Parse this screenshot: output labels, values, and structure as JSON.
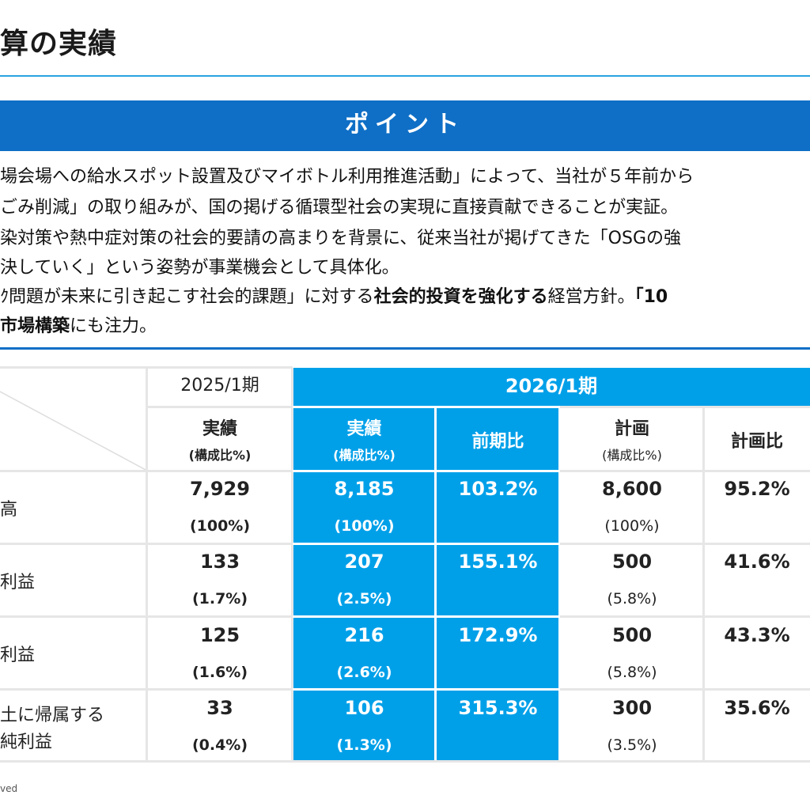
{
  "page": {
    "title": "算の実績",
    "point_label": "ポイント",
    "footer": "ved"
  },
  "points": {
    "line1": "場会場への給水スポット設置及びマイボトル利用推進活動」によって、当社が５年前から",
    "line2": "ごみ削減」の取り組みが、国の掲げる循環型社会の実現に直接貢献できることが実証。",
    "line3": "染対策や熱中症対策の社会的要請の高まりを背景に、従来当社が掲げてきた「OSGの強",
    "line4": "決していく」という姿勢が事業機会として具体化。",
    "line5_a": "ｸ問題が未来に引き起こす社会的課題」に対する",
    "line5_b": "社会的投資を強化する",
    "line5_c": "経営方針。",
    "line5_d": "「10",
    "line6_a": "市場構築",
    "line6_b": "にも注力。"
  },
  "table": {
    "period_prev": "2025/1期",
    "period_curr": "2026/1期",
    "columns": {
      "actual": "実績",
      "actual_ratio": "(構成比%)",
      "actual_curr": "実績",
      "actual_curr_ratio": "(構成比%)",
      "yoy": "前期比",
      "plan": "計画",
      "plan_ratio": "(構成比%)",
      "plan_vs": "計画比"
    },
    "rows": [
      {
        "label1": "高",
        "label2": "",
        "prev": "7,929",
        "prev_ratio": "(100%)",
        "curr": "8,185",
        "curr_ratio": "(100%)",
        "yoy": "103.2%",
        "plan": "8,600",
        "plan_ratio": "(100%)",
        "plan_vs": "95.2%"
      },
      {
        "label1": "利益",
        "label2": "",
        "prev": "133",
        "prev_ratio": "(1.7%)",
        "curr": "207",
        "curr_ratio": "(2.5%)",
        "yoy": "155.1%",
        "plan": "500",
        "plan_ratio": "(5.8%)",
        "plan_vs": "41.6%"
      },
      {
        "label1": "利益",
        "label2": "",
        "prev": "125",
        "prev_ratio": "(1.6%)",
        "curr": "216",
        "curr_ratio": "(2.6%)",
        "yoy": "172.9%",
        "plan": "500",
        "plan_ratio": "(5.8%)",
        "plan_vs": "43.3%"
      },
      {
        "label1": "土に帰属する",
        "label2": "純利益",
        "prev": "33",
        "prev_ratio": "(0.4%)",
        "curr": "106",
        "curr_ratio": "(1.3%)",
        "yoy": "315.3%",
        "plan": "300",
        "plan_ratio": "(3.5%)",
        "plan_vs": "35.6%"
      }
    ]
  }
}
